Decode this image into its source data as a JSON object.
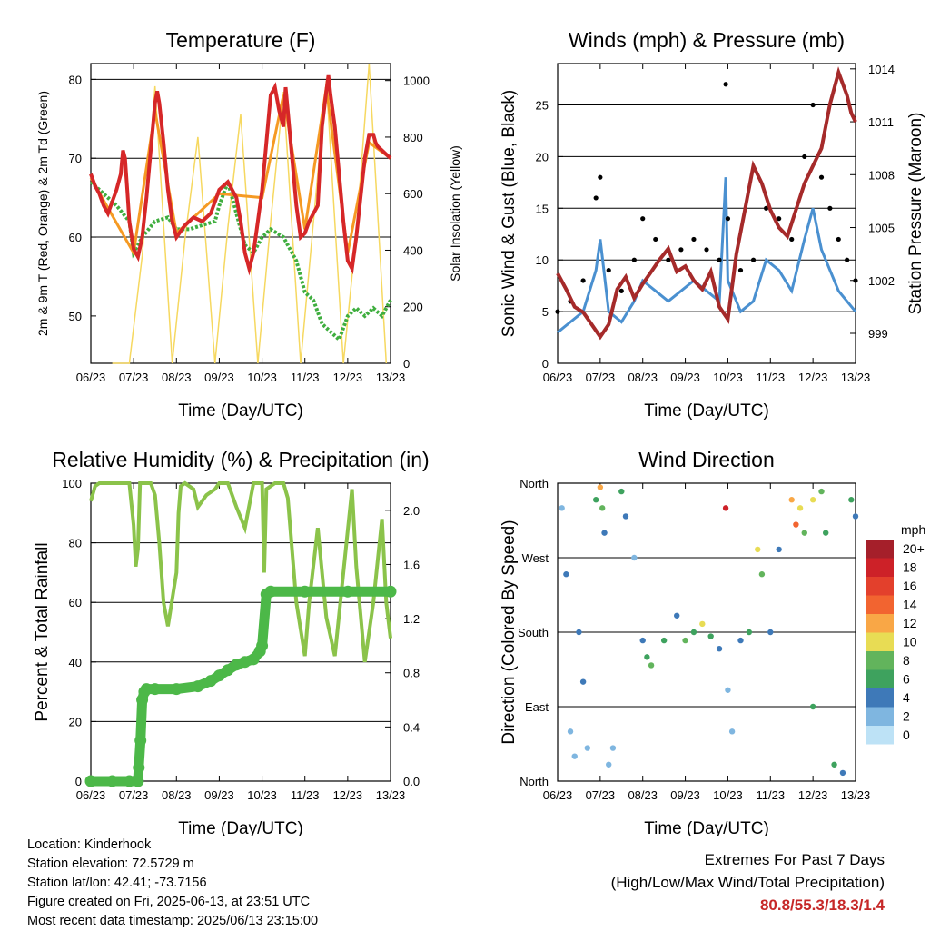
{
  "chart_data": [
    {
      "type": "line",
      "title": "Temperature (F)",
      "xlabel": "Time (Day/UTC)",
      "ylabel_left": "2m & 9m T (Red, Orange) & 2m Td (Green)",
      "ylabel_right": "Solar Insolation (Yellow)",
      "x_ticks": [
        "06/23",
        "07/23",
        "08/23",
        "09/23",
        "10/23",
        "11/23",
        "12/23",
        "13/23"
      ],
      "ylim_left": [
        44,
        82
      ],
      "yticks_left": [
        50,
        60,
        70,
        80
      ],
      "ylim_right": [
        0,
        1060
      ],
      "yticks_right": [
        0,
        200,
        400,
        600,
        800,
        1000
      ],
      "grid_y": [
        60,
        70,
        80
      ],
      "colors": {
        "t2m": "#d62728",
        "t9m": "#f59a23",
        "td": "#3fae3f",
        "solar": "#f6d860"
      },
      "series": [
        {
          "key": "t2m",
          "x": [
            0,
            0.1,
            0.2,
            0.3,
            0.4,
            0.5,
            0.6,
            0.7,
            0.75,
            0.8,
            0.85,
            0.9,
            1.0,
            1.1,
            1.2,
            1.3,
            1.4,
            1.5,
            1.55,
            1.6,
            1.7,
            1.8,
            1.9,
            2.0,
            2.2,
            2.4,
            2.6,
            2.8,
            3.0,
            3.2,
            3.4,
            3.5,
            3.6,
            3.7,
            3.8,
            3.9,
            4.0,
            4.1,
            4.2,
            4.3,
            4.4,
            4.5,
            4.55,
            4.6,
            4.7,
            4.8,
            4.9,
            5.0,
            5.1,
            5.2,
            5.3,
            5.4,
            5.5,
            5.55,
            5.6,
            5.7,
            5.8,
            5.9,
            6.0,
            6.1,
            6.2,
            6.3,
            6.4,
            6.5,
            6.6,
            6.65,
            6.7,
            6.8,
            6.9,
            7.0
          ],
          "y": [
            68,
            66.5,
            65.5,
            64,
            63,
            64.5,
            66,
            68,
            71,
            70,
            66,
            62,
            58.5,
            57.5,
            60,
            65,
            71,
            77,
            78.5,
            77,
            72,
            66,
            62,
            60,
            61.5,
            62.5,
            62,
            63,
            66,
            67,
            65,
            62,
            58,
            56,
            58,
            62,
            66,
            72,
            78,
            79,
            76,
            74,
            79,
            76,
            70,
            64,
            60,
            60.5,
            62,
            63,
            64,
            74,
            78.5,
            80.5,
            78,
            74,
            68,
            62,
            57,
            56,
            60,
            65,
            70,
            73,
            73,
            72,
            71.5,
            71,
            70.5,
            70
          ]
        },
        {
          "key": "t9m",
          "x": [
            0,
            1.0,
            1.5,
            2.0,
            3.0,
            4.0,
            4.5,
            5.0,
            5.5,
            6.0,
            6.5,
            7.0
          ],
          "y": [
            67.5,
            58,
            76,
            60.5,
            65.5,
            65,
            78,
            61,
            79,
            58,
            72,
            70
          ]
        },
        {
          "key": "td",
          "x": [
            0,
            0.3,
            0.6,
            0.9,
            1.0,
            1.2,
            1.5,
            1.8,
            2.0,
            2.3,
            2.6,
            2.9,
            3.0,
            3.2,
            3.4,
            3.6,
            3.8,
            4.0,
            4.2,
            4.5,
            4.8,
            5.0,
            5.2,
            5.4,
            5.6,
            5.8,
            6.0,
            6.2,
            6.4,
            6.6,
            6.8,
            7.0
          ],
          "y": [
            67,
            65.5,
            64,
            62,
            58,
            60,
            62,
            62.5,
            61,
            61,
            61.5,
            62,
            64,
            67,
            63,
            59,
            58,
            60,
            61,
            60,
            57,
            53,
            52,
            49,
            48,
            47,
            50,
            51,
            50,
            51,
            50,
            52
          ]
        },
        {
          "key": "solar",
          "x": [
            0.5,
            0.9,
            1.2,
            1.5,
            1.9,
            2.2,
            2.5,
            2.9,
            3.2,
            3.5,
            3.9,
            4.2,
            4.5,
            4.9,
            5.2,
            5.5,
            5.9,
            6.2,
            6.5,
            6.9
          ],
          "y": [
            0,
            0,
            380,
            980,
            0,
            440,
            800,
            0,
            480,
            880,
            0,
            500,
            960,
            0,
            500,
            1000,
            0,
            460,
            1060,
            0
          ]
        }
      ]
    },
    {
      "type": "line",
      "title": "Winds (mph) & Pressure (mb)",
      "xlabel": "Time (Day/UTC)",
      "ylabel_left": "Sonic Wind & Gust (Blue, Black)",
      "ylabel_right": "Station Pressure (Maroon)",
      "x_ticks": [
        "06/23",
        "07/23",
        "08/23",
        "09/23",
        "10/23",
        "11/23",
        "12/23",
        "13/23"
      ],
      "ylim_left": [
        0,
        29
      ],
      "yticks_left": [
        0,
        5,
        10,
        15,
        20,
        25
      ],
      "ylim_right": [
        997.3,
        1014.3
      ],
      "yticks_right": [
        999,
        1002,
        1005,
        1008,
        1011,
        1014
      ],
      "grid_y": [
        5,
        10,
        15,
        20,
        25
      ],
      "colors": {
        "wind": "#4a90d0",
        "gust": "#000000",
        "pressure": "#a52a2a"
      },
      "series": [
        {
          "key": "wind",
          "x": [
            0,
            0.3,
            0.6,
            0.9,
            1.0,
            1.2,
            1.5,
            1.8,
            2.0,
            2.3,
            2.6,
            2.9,
            3.2,
            3.5,
            3.8,
            3.95,
            4.0,
            4.3,
            4.6,
            4.9,
            5.2,
            5.5,
            5.8,
            6.0,
            6.2,
            6.4,
            6.6,
            6.8,
            7.0
          ],
          "y": [
            3,
            4,
            5,
            9,
            12,
            5,
            4,
            6,
            8,
            7,
            6,
            7,
            8,
            7,
            6,
            18,
            8,
            5,
            6,
            10,
            9,
            7,
            12,
            15,
            11,
            9,
            7,
            6,
            5
          ]
        },
        {
          "key": "gust",
          "x": [
            0,
            0.3,
            0.6,
            0.9,
            1.0,
            1.2,
            1.5,
            1.8,
            2.0,
            2.3,
            2.6,
            2.9,
            3.2,
            3.5,
            3.8,
            3.95,
            4.0,
            4.3,
            4.6,
            4.9,
            5.2,
            5.5,
            5.8,
            6.0,
            6.2,
            6.4,
            6.6,
            6.8,
            7.0
          ],
          "y": [
            5,
            6,
            8,
            16,
            18,
            9,
            7,
            10,
            14,
            12,
            10,
            11,
            12,
            11,
            10,
            27,
            14,
            9,
            10,
            15,
            14,
            12,
            20,
            25,
            18,
            15,
            12,
            10,
            8
          ]
        },
        {
          "key": "pressure",
          "x": [
            0,
            0.2,
            0.4,
            0.6,
            0.8,
            1.0,
            1.2,
            1.4,
            1.6,
            1.8,
            2.0,
            2.2,
            2.4,
            2.6,
            2.8,
            3.0,
            3.2,
            3.4,
            3.6,
            3.8,
            4.0,
            4.2,
            4.4,
            4.6,
            4.8,
            5.0,
            5.2,
            5.4,
            5.6,
            5.8,
            6.0,
            6.2,
            6.4,
            6.6,
            6.8,
            6.9,
            7.0
          ],
          "y": [
            1002.4,
            1001.5,
            1000.5,
            1000.2,
            999.5,
            998.8,
            999.5,
            1001.5,
            1002.2,
            1001.0,
            1001.8,
            1002.5,
            1003.2,
            1003.8,
            1002.5,
            1002.8,
            1002.0,
            1001.5,
            1002.5,
            1000.5,
            999.8,
            1003.5,
            1006.0,
            1008.5,
            1007.5,
            1006.0,
            1005.0,
            1004.5,
            1006.0,
            1007.5,
            1008.5,
            1009.5,
            1012.0,
            1013.8,
            1012.5,
            1011.5,
            1011.0
          ]
        }
      ]
    },
    {
      "type": "line",
      "title": "Relative Humidity (%) & Precipitation (in)",
      "xlabel": "Time (Day/UTC)",
      "ylabel_left": "Percent & Total Rainfall",
      "ylim_left": [
        0,
        100
      ],
      "yticks_left": [
        0,
        20,
        40,
        60,
        80,
        100
      ],
      "ylim_right": [
        0,
        2.2
      ],
      "yticks_right": [
        "0.0",
        "0.4",
        "0.8",
        "1.2",
        "1.6",
        "2.0"
      ],
      "x_ticks": [
        "06/23",
        "07/23",
        "08/23",
        "09/23",
        "10/23",
        "11/23",
        "12/23",
        "13/23"
      ],
      "grid_y": [
        20,
        40,
        60,
        80,
        100
      ],
      "colors": {
        "rh": "#8bc34a",
        "precip": "#4cb848"
      },
      "series": [
        {
          "key": "rh",
          "x": [
            0,
            0.1,
            0.2,
            0.5,
            0.9,
            1.0,
            1.05,
            1.1,
            1.15,
            1.2,
            1.3,
            1.4,
            1.5,
            1.6,
            1.7,
            1.8,
            2.0,
            2.05,
            2.1,
            2.2,
            2.4,
            2.5,
            2.7,
            2.9,
            3.0,
            3.2,
            3.4,
            3.6,
            3.8,
            4.0,
            4.05,
            4.1,
            4.3,
            4.5,
            4.6,
            4.8,
            5.0,
            5.1,
            5.3,
            5.5,
            5.7,
            5.9,
            6.1,
            6.2,
            6.4,
            6.6,
            6.8,
            6.9,
            7.0
          ],
          "y": [
            94,
            99,
            100,
            100,
            100,
            86,
            72,
            78,
            100,
            100,
            100,
            100,
            96,
            80,
            60,
            52,
            70,
            90,
            99,
            100,
            98,
            92,
            96,
            98,
            100,
            100,
            92,
            85,
            100,
            100,
            70,
            98,
            100,
            100,
            95,
            60,
            42,
            60,
            85,
            55,
            42,
            70,
            98,
            72,
            40,
            60,
            88,
            60,
            48
          ]
        },
        {
          "key": "precip",
          "x": [
            0,
            0.5,
            0.9,
            1.1,
            1.12,
            1.16,
            1.2,
            1.25,
            1.3,
            1.5,
            2.0,
            2.5,
            2.8,
            3.0,
            3.2,
            3.4,
            3.6,
            3.8,
            3.95,
            4.0,
            4.1,
            4.2,
            5.0,
            6.0,
            7.0
          ],
          "y": [
            0,
            0,
            0,
            0,
            0.1,
            0.3,
            0.6,
            0.66,
            0.68,
            0.68,
            0.68,
            0.7,
            0.74,
            0.78,
            0.82,
            0.86,
            0.88,
            0.9,
            0.96,
            1.0,
            1.38,
            1.4,
            1.4,
            1.4,
            1.4
          ]
        }
      ]
    },
    {
      "type": "scatter",
      "title": "Wind Direction",
      "xlabel": "Time (Day/UTC)",
      "ylabel": "Direction (Colored By Speed)",
      "x_ticks": [
        "06/23",
        "07/23",
        "08/23",
        "09/23",
        "10/23",
        "11/23",
        "12/23",
        "13/23"
      ],
      "y_ticks": [
        "North",
        "East",
        "South",
        "West",
        "North"
      ],
      "y_tick_values": [
        0,
        90,
        180,
        270,
        360
      ],
      "ylim": [
        0,
        360
      ],
      "grid_y": [
        90,
        180,
        270
      ],
      "legend_title": "mph",
      "legend_labels": [
        "20+",
        "18",
        "16",
        "14",
        "12",
        "10",
        "8",
        "6",
        "4",
        "2",
        "0"
      ],
      "legend_colors": [
        "#a51f2a",
        "#cd2128",
        "#e3402c",
        "#f26430",
        "#f9a746",
        "#e8dc54",
        "#62b45c",
        "#3ea25e",
        "#3e79b8",
        "#7fb6e0",
        "#bde2f6"
      ],
      "points": [
        {
          "x": 0.1,
          "y": 330,
          "s": 2
        },
        {
          "x": 0.2,
          "y": 250,
          "s": 3
        },
        {
          "x": 0.3,
          "y": 60,
          "s": 1
        },
        {
          "x": 0.4,
          "y": 30,
          "s": 2
        },
        {
          "x": 0.5,
          "y": 180,
          "s": 3
        },
        {
          "x": 0.6,
          "y": 120,
          "s": 4
        },
        {
          "x": 0.7,
          "y": 40,
          "s": 2
        },
        {
          "x": 0.9,
          "y": 340,
          "s": 6
        },
        {
          "x": 1.0,
          "y": 355,
          "s": 12
        },
        {
          "x": 1.05,
          "y": 330,
          "s": 8
        },
        {
          "x": 1.1,
          "y": 300,
          "s": 3
        },
        {
          "x": 1.2,
          "y": 20,
          "s": 2
        },
        {
          "x": 1.3,
          "y": 40,
          "s": 1
        },
        {
          "x": 1.5,
          "y": 350,
          "s": 5
        },
        {
          "x": 1.6,
          "y": 320,
          "s": 3
        },
        {
          "x": 1.8,
          "y": 270,
          "s": 2
        },
        {
          "x": 2.0,
          "y": 170,
          "s": 4
        },
        {
          "x": 2.1,
          "y": 150,
          "s": 5
        },
        {
          "x": 2.2,
          "y": 140,
          "s": 7
        },
        {
          "x": 2.5,
          "y": 170,
          "s": 6
        },
        {
          "x": 2.8,
          "y": 200,
          "s": 4
        },
        {
          "x": 3.0,
          "y": 170,
          "s": 7
        },
        {
          "x": 3.2,
          "y": 180,
          "s": 5
        },
        {
          "x": 3.4,
          "y": 190,
          "s": 9
        },
        {
          "x": 3.6,
          "y": 175,
          "s": 6
        },
        {
          "x": 3.8,
          "y": 160,
          "s": 3
        },
        {
          "x": 3.95,
          "y": 330,
          "s": 18
        },
        {
          "x": 4.0,
          "y": 110,
          "s": 2
        },
        {
          "x": 4.1,
          "y": 60,
          "s": 1
        },
        {
          "x": 4.3,
          "y": 170,
          "s": 4
        },
        {
          "x": 4.5,
          "y": 180,
          "s": 6
        },
        {
          "x": 4.7,
          "y": 280,
          "s": 10
        },
        {
          "x": 4.8,
          "y": 250,
          "s": 7
        },
        {
          "x": 5.0,
          "y": 180,
          "s": 4
        },
        {
          "x": 5.2,
          "y": 280,
          "s": 3
        },
        {
          "x": 5.5,
          "y": 340,
          "s": 12
        },
        {
          "x": 5.6,
          "y": 310,
          "s": 14
        },
        {
          "x": 5.7,
          "y": 330,
          "s": 10
        },
        {
          "x": 5.8,
          "y": 300,
          "s": 8
        },
        {
          "x": 6.0,
          "y": 340,
          "s": 9
        },
        {
          "x": 6.2,
          "y": 350,
          "s": 7
        },
        {
          "x": 6.3,
          "y": 300,
          "s": 5
        },
        {
          "x": 6.0,
          "y": 90,
          "s": 6
        },
        {
          "x": 6.5,
          "y": 20,
          "s": 5
        },
        {
          "x": 6.7,
          "y": 10,
          "s": 4
        },
        {
          "x": 6.9,
          "y": 340,
          "s": 6
        },
        {
          "x": 7.0,
          "y": 320,
          "s": 4
        }
      ]
    }
  ],
  "info": {
    "location": "Location: Kinderhook",
    "elevation": "Station elevation: 72.5729 m",
    "latlon": "Station lat/lon: 42.41; -73.7156",
    "created": "Figure created on Fri, 2025-06-13, at 23:51 UTC",
    "recent": "Most recent data timestamp: 2025/06/13 23:15:00"
  },
  "extremes": {
    "title": "Extremes For Past 7 Days",
    "subtitle": "(High/Low/Max Wind/Total Precipitation)",
    "values": "80.8/55.3/18.3/1.4"
  }
}
